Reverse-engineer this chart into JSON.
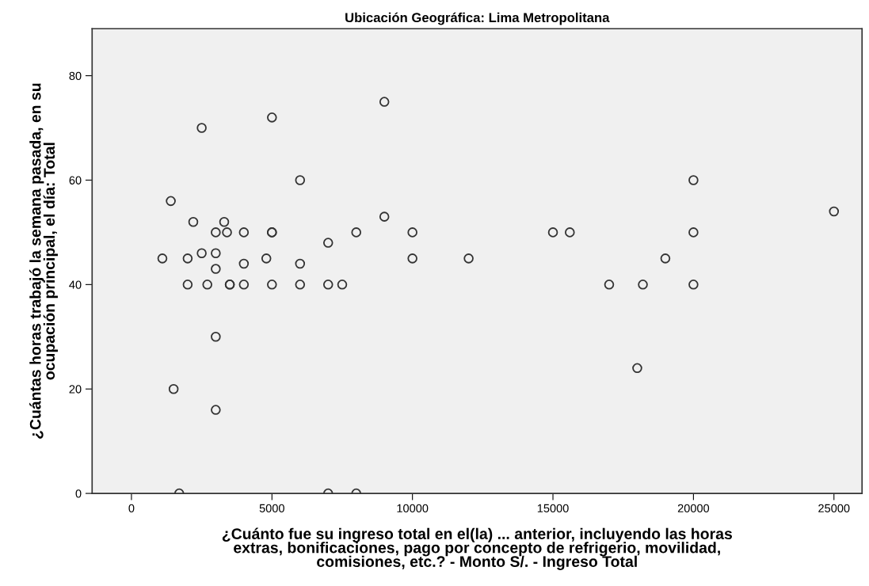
{
  "chart_data": {
    "type": "scatter",
    "title": "Ubicación Geográfica: Lima Metropolitana",
    "xlabel": "¿Cuánto fue su ingreso total en el(la) ... anterior, incluyendo las horas\nextras, bonificaciones, pago por concepto de refrigerio, movilidad,\ncomisiones, etc.? - Monto S/. - Ingreso Total",
    "ylabel": "¿Cuántas horas trabajó la semana pasada, en su\nocupación principal, el día: Total",
    "x": [
      1100,
      1400,
      1500,
      1700,
      2000,
      2000,
      2200,
      2500,
      2500,
      2700,
      3000,
      3000,
      3000,
      3000,
      3000,
      3300,
      3400,
      3500,
      3500,
      4000,
      4000,
      4000,
      4800,
      5000,
      5000,
      5000,
      5000,
      6000,
      6000,
      6000,
      7000,
      7000,
      7000,
      7500,
      8000,
      8000,
      9000,
      9000,
      10000,
      10000,
      12000,
      15000,
      15600,
      17000,
      18000,
      18200,
      19000,
      20000,
      20000,
      20000,
      25000
    ],
    "values": [
      45,
      56,
      20,
      0,
      45,
      40,
      52,
      70,
      46,
      40,
      50,
      46,
      43,
      30,
      16,
      52,
      50,
      40,
      40,
      50,
      44,
      40,
      45,
      72,
      50,
      50,
      40,
      60,
      44,
      40,
      48,
      40,
      0,
      40,
      50,
      0,
      75,
      53,
      50,
      45,
      45,
      50,
      50,
      40,
      24,
      40,
      45,
      60,
      50,
      40,
      54
    ],
    "color": "#333333",
    "marker": "circle",
    "grid": false,
    "legend": false,
    "xlim": [
      -1400,
      26000
    ],
    "ylim": [
      0,
      89
    ],
    "xticks": [
      0,
      5000,
      10000,
      15000,
      20000,
      25000
    ],
    "yticks": [
      0,
      20,
      40,
      60,
      80
    ]
  }
}
